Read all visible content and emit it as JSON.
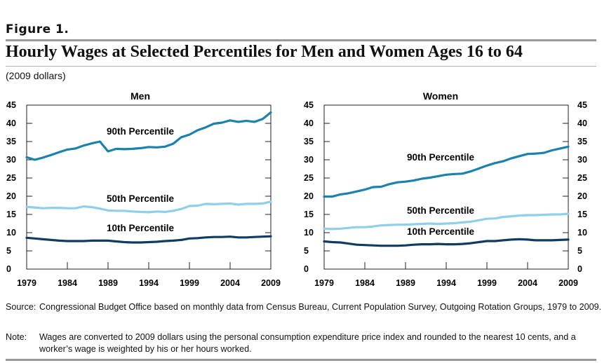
{
  "figure_label": "Figure 1.",
  "title": "Hourly Wages at Selected Percentiles for Men and Women Ages 16 to 64",
  "subtitle": "(2009 dollars)",
  "source": {
    "label": "Source:",
    "text": "Congressional Budget Office based on monthly data from Census Bureau, Current Population Survey, Outgoing Rotation Groups, 1979 to 2009."
  },
  "note": {
    "label": "Note:",
    "text": "Wages are converted to 2009 dollars using the personal consumption expenditure price index and rounded to the nearest 10 cents, and a worker’s wage is weighted by his or her hours worked."
  },
  "colors": {
    "p90": "#1a82ad",
    "p50": "#8ecfea",
    "p10": "#113b61"
  },
  "chart_data": [
    {
      "type": "line",
      "title": "Men",
      "x": [
        1979,
        1980,
        1981,
        1982,
        1983,
        1984,
        1985,
        1986,
        1987,
        1988,
        1989,
        1990,
        1991,
        1992,
        1993,
        1994,
        1995,
        1996,
        1997,
        1998,
        1999,
        2000,
        2001,
        2002,
        2003,
        2004,
        2005,
        2006,
        2007,
        2008,
        2009
      ],
      "xticks": [
        1979,
        1984,
        1989,
        1994,
        1999,
        2004,
        2009
      ],
      "yticks": [
        0,
        5,
        10,
        15,
        20,
        25,
        30,
        35,
        40,
        45
      ],
      "ylim": [
        0,
        45
      ],
      "series": [
        {
          "name": "90th Percentile",
          "key": "p90",
          "values": [
            30.7,
            30.0,
            30.6,
            31.3,
            32.1,
            32.8,
            33.1,
            33.9,
            34.5,
            35.0,
            32.3,
            33.0,
            32.9,
            33.0,
            33.2,
            33.5,
            33.4,
            33.6,
            34.4,
            36.2,
            36.9,
            38.1,
            38.9,
            39.9,
            40.2,
            40.8,
            40.4,
            40.7,
            40.4,
            41.2,
            43.0
          ]
        },
        {
          "name": "50th Percentile",
          "key": "p50",
          "values": [
            17.1,
            16.9,
            16.7,
            16.8,
            16.8,
            16.7,
            16.7,
            17.2,
            17.0,
            16.6,
            16.1,
            16.0,
            16.0,
            15.8,
            15.7,
            15.6,
            15.8,
            15.7,
            16.0,
            16.5,
            17.3,
            17.4,
            17.9,
            17.8,
            17.9,
            18.0,
            17.7,
            17.9,
            17.9,
            18.0,
            18.5
          ]
        },
        {
          "name": "10th Percentile",
          "key": "p10",
          "values": [
            8.6,
            8.4,
            8.2,
            8.0,
            7.8,
            7.7,
            7.7,
            7.7,
            7.8,
            7.8,
            7.8,
            7.6,
            7.4,
            7.3,
            7.3,
            7.4,
            7.5,
            7.7,
            7.8,
            8.0,
            8.4,
            8.5,
            8.7,
            8.8,
            8.8,
            8.9,
            8.7,
            8.7,
            8.8,
            8.9,
            9.0
          ]
        }
      ]
    },
    {
      "type": "line",
      "title": "Women",
      "x": [
        1979,
        1980,
        1981,
        1982,
        1983,
        1984,
        1985,
        1986,
        1987,
        1988,
        1989,
        1990,
        1991,
        1992,
        1993,
        1994,
        1995,
        1996,
        1997,
        1998,
        1999,
        2000,
        2001,
        2002,
        2003,
        2004,
        2005,
        2006,
        2007,
        2008,
        2009
      ],
      "xticks": [
        1979,
        1984,
        1989,
        1994,
        1999,
        2004,
        2009
      ],
      "yticks": [
        0,
        5,
        10,
        15,
        20,
        25,
        30,
        35,
        40,
        45
      ],
      "ylim": [
        0,
        45
      ],
      "series": [
        {
          "name": "90th Percentile",
          "key": "p90",
          "values": [
            19.9,
            19.9,
            20.5,
            20.8,
            21.3,
            21.8,
            22.5,
            22.6,
            23.3,
            23.8,
            24.0,
            24.3,
            24.8,
            25.1,
            25.5,
            25.9,
            26.1,
            26.2,
            26.8,
            27.6,
            28.4,
            29.1,
            29.6,
            30.4,
            31.0,
            31.6,
            31.7,
            31.9,
            32.6,
            33.1,
            33.6
          ]
        },
        {
          "name": "50th Percentile",
          "key": "p50",
          "values": [
            11.1,
            11.0,
            11.1,
            11.3,
            11.5,
            11.5,
            11.7,
            12.0,
            12.1,
            12.2,
            12.2,
            12.3,
            12.4,
            12.5,
            12.4,
            12.5,
            12.6,
            12.8,
            13.0,
            13.4,
            13.8,
            13.9,
            14.3,
            14.5,
            14.7,
            14.8,
            14.8,
            14.9,
            15.0,
            15.0,
            15.2
          ]
        },
        {
          "name": "10th Percentile",
          "key": "p10",
          "values": [
            7.6,
            7.4,
            7.3,
            7.0,
            6.7,
            6.6,
            6.5,
            6.4,
            6.4,
            6.4,
            6.5,
            6.7,
            6.8,
            6.8,
            6.9,
            6.8,
            6.8,
            6.9,
            7.1,
            7.4,
            7.7,
            7.7,
            7.9,
            8.1,
            8.2,
            8.1,
            7.9,
            7.9,
            7.9,
            8.0,
            8.1
          ]
        }
      ]
    }
  ]
}
